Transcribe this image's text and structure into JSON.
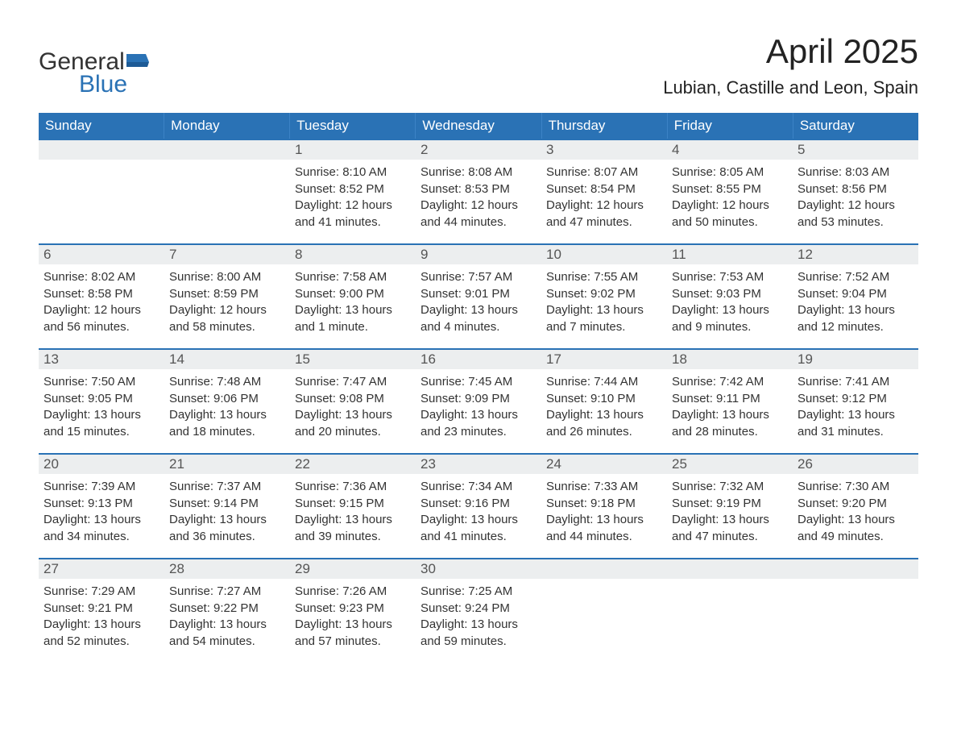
{
  "brand": {
    "general": "General",
    "blue": "Blue",
    "accent": "#2a72b5"
  },
  "title": "April 2025",
  "location": "Lubian, Castille and Leon, Spain",
  "colors": {
    "header_bg": "#2a72b5",
    "header_text": "#ffffff",
    "daynum_bg": "#eceeef",
    "daynum_text": "#555555",
    "body_text": "#333333",
    "week_divider": "#2a72b5",
    "page_bg": "#ffffff"
  },
  "fonts": {
    "title_size": 42,
    "location_size": 22,
    "header_size": 17,
    "daynum_size": 17,
    "cell_size": 15
  },
  "day_labels": [
    "Sunday",
    "Monday",
    "Tuesday",
    "Wednesday",
    "Thursday",
    "Friday",
    "Saturday"
  ],
  "weeks": [
    [
      {
        "empty": true
      },
      {
        "empty": true
      },
      {
        "day": "1",
        "sunrise": "Sunrise: 8:10 AM",
        "sunset": "Sunset: 8:52 PM",
        "daylight1": "Daylight: 12 hours",
        "daylight2": "and 41 minutes."
      },
      {
        "day": "2",
        "sunrise": "Sunrise: 8:08 AM",
        "sunset": "Sunset: 8:53 PM",
        "daylight1": "Daylight: 12 hours",
        "daylight2": "and 44 minutes."
      },
      {
        "day": "3",
        "sunrise": "Sunrise: 8:07 AM",
        "sunset": "Sunset: 8:54 PM",
        "daylight1": "Daylight: 12 hours",
        "daylight2": "and 47 minutes."
      },
      {
        "day": "4",
        "sunrise": "Sunrise: 8:05 AM",
        "sunset": "Sunset: 8:55 PM",
        "daylight1": "Daylight: 12 hours",
        "daylight2": "and 50 minutes."
      },
      {
        "day": "5",
        "sunrise": "Sunrise: 8:03 AM",
        "sunset": "Sunset: 8:56 PM",
        "daylight1": "Daylight: 12 hours",
        "daylight2": "and 53 minutes."
      }
    ],
    [
      {
        "day": "6",
        "sunrise": "Sunrise: 8:02 AM",
        "sunset": "Sunset: 8:58 PM",
        "daylight1": "Daylight: 12 hours",
        "daylight2": "and 56 minutes."
      },
      {
        "day": "7",
        "sunrise": "Sunrise: 8:00 AM",
        "sunset": "Sunset: 8:59 PM",
        "daylight1": "Daylight: 12 hours",
        "daylight2": "and 58 minutes."
      },
      {
        "day": "8",
        "sunrise": "Sunrise: 7:58 AM",
        "sunset": "Sunset: 9:00 PM",
        "daylight1": "Daylight: 13 hours",
        "daylight2": "and 1 minute."
      },
      {
        "day": "9",
        "sunrise": "Sunrise: 7:57 AM",
        "sunset": "Sunset: 9:01 PM",
        "daylight1": "Daylight: 13 hours",
        "daylight2": "and 4 minutes."
      },
      {
        "day": "10",
        "sunrise": "Sunrise: 7:55 AM",
        "sunset": "Sunset: 9:02 PM",
        "daylight1": "Daylight: 13 hours",
        "daylight2": "and 7 minutes."
      },
      {
        "day": "11",
        "sunrise": "Sunrise: 7:53 AM",
        "sunset": "Sunset: 9:03 PM",
        "daylight1": "Daylight: 13 hours",
        "daylight2": "and 9 minutes."
      },
      {
        "day": "12",
        "sunrise": "Sunrise: 7:52 AM",
        "sunset": "Sunset: 9:04 PM",
        "daylight1": "Daylight: 13 hours",
        "daylight2": "and 12 minutes."
      }
    ],
    [
      {
        "day": "13",
        "sunrise": "Sunrise: 7:50 AM",
        "sunset": "Sunset: 9:05 PM",
        "daylight1": "Daylight: 13 hours",
        "daylight2": "and 15 minutes."
      },
      {
        "day": "14",
        "sunrise": "Sunrise: 7:48 AM",
        "sunset": "Sunset: 9:06 PM",
        "daylight1": "Daylight: 13 hours",
        "daylight2": "and 18 minutes."
      },
      {
        "day": "15",
        "sunrise": "Sunrise: 7:47 AM",
        "sunset": "Sunset: 9:08 PM",
        "daylight1": "Daylight: 13 hours",
        "daylight2": "and 20 minutes."
      },
      {
        "day": "16",
        "sunrise": "Sunrise: 7:45 AM",
        "sunset": "Sunset: 9:09 PM",
        "daylight1": "Daylight: 13 hours",
        "daylight2": "and 23 minutes."
      },
      {
        "day": "17",
        "sunrise": "Sunrise: 7:44 AM",
        "sunset": "Sunset: 9:10 PM",
        "daylight1": "Daylight: 13 hours",
        "daylight2": "and 26 minutes."
      },
      {
        "day": "18",
        "sunrise": "Sunrise: 7:42 AM",
        "sunset": "Sunset: 9:11 PM",
        "daylight1": "Daylight: 13 hours",
        "daylight2": "and 28 minutes."
      },
      {
        "day": "19",
        "sunrise": "Sunrise: 7:41 AM",
        "sunset": "Sunset: 9:12 PM",
        "daylight1": "Daylight: 13 hours",
        "daylight2": "and 31 minutes."
      }
    ],
    [
      {
        "day": "20",
        "sunrise": "Sunrise: 7:39 AM",
        "sunset": "Sunset: 9:13 PM",
        "daylight1": "Daylight: 13 hours",
        "daylight2": "and 34 minutes."
      },
      {
        "day": "21",
        "sunrise": "Sunrise: 7:37 AM",
        "sunset": "Sunset: 9:14 PM",
        "daylight1": "Daylight: 13 hours",
        "daylight2": "and 36 minutes."
      },
      {
        "day": "22",
        "sunrise": "Sunrise: 7:36 AM",
        "sunset": "Sunset: 9:15 PM",
        "daylight1": "Daylight: 13 hours",
        "daylight2": "and 39 minutes."
      },
      {
        "day": "23",
        "sunrise": "Sunrise: 7:34 AM",
        "sunset": "Sunset: 9:16 PM",
        "daylight1": "Daylight: 13 hours",
        "daylight2": "and 41 minutes."
      },
      {
        "day": "24",
        "sunrise": "Sunrise: 7:33 AM",
        "sunset": "Sunset: 9:18 PM",
        "daylight1": "Daylight: 13 hours",
        "daylight2": "and 44 minutes."
      },
      {
        "day": "25",
        "sunrise": "Sunrise: 7:32 AM",
        "sunset": "Sunset: 9:19 PM",
        "daylight1": "Daylight: 13 hours",
        "daylight2": "and 47 minutes."
      },
      {
        "day": "26",
        "sunrise": "Sunrise: 7:30 AM",
        "sunset": "Sunset: 9:20 PM",
        "daylight1": "Daylight: 13 hours",
        "daylight2": "and 49 minutes."
      }
    ],
    [
      {
        "day": "27",
        "sunrise": "Sunrise: 7:29 AM",
        "sunset": "Sunset: 9:21 PM",
        "daylight1": "Daylight: 13 hours",
        "daylight2": "and 52 minutes."
      },
      {
        "day": "28",
        "sunrise": "Sunrise: 7:27 AM",
        "sunset": "Sunset: 9:22 PM",
        "daylight1": "Daylight: 13 hours",
        "daylight2": "and 54 minutes."
      },
      {
        "day": "29",
        "sunrise": "Sunrise: 7:26 AM",
        "sunset": "Sunset: 9:23 PM",
        "daylight1": "Daylight: 13 hours",
        "daylight2": "and 57 minutes."
      },
      {
        "day": "30",
        "sunrise": "Sunrise: 7:25 AM",
        "sunset": "Sunset: 9:24 PM",
        "daylight1": "Daylight: 13 hours",
        "daylight2": "and 59 minutes."
      },
      {
        "empty": true
      },
      {
        "empty": true
      },
      {
        "empty": true
      }
    ]
  ]
}
